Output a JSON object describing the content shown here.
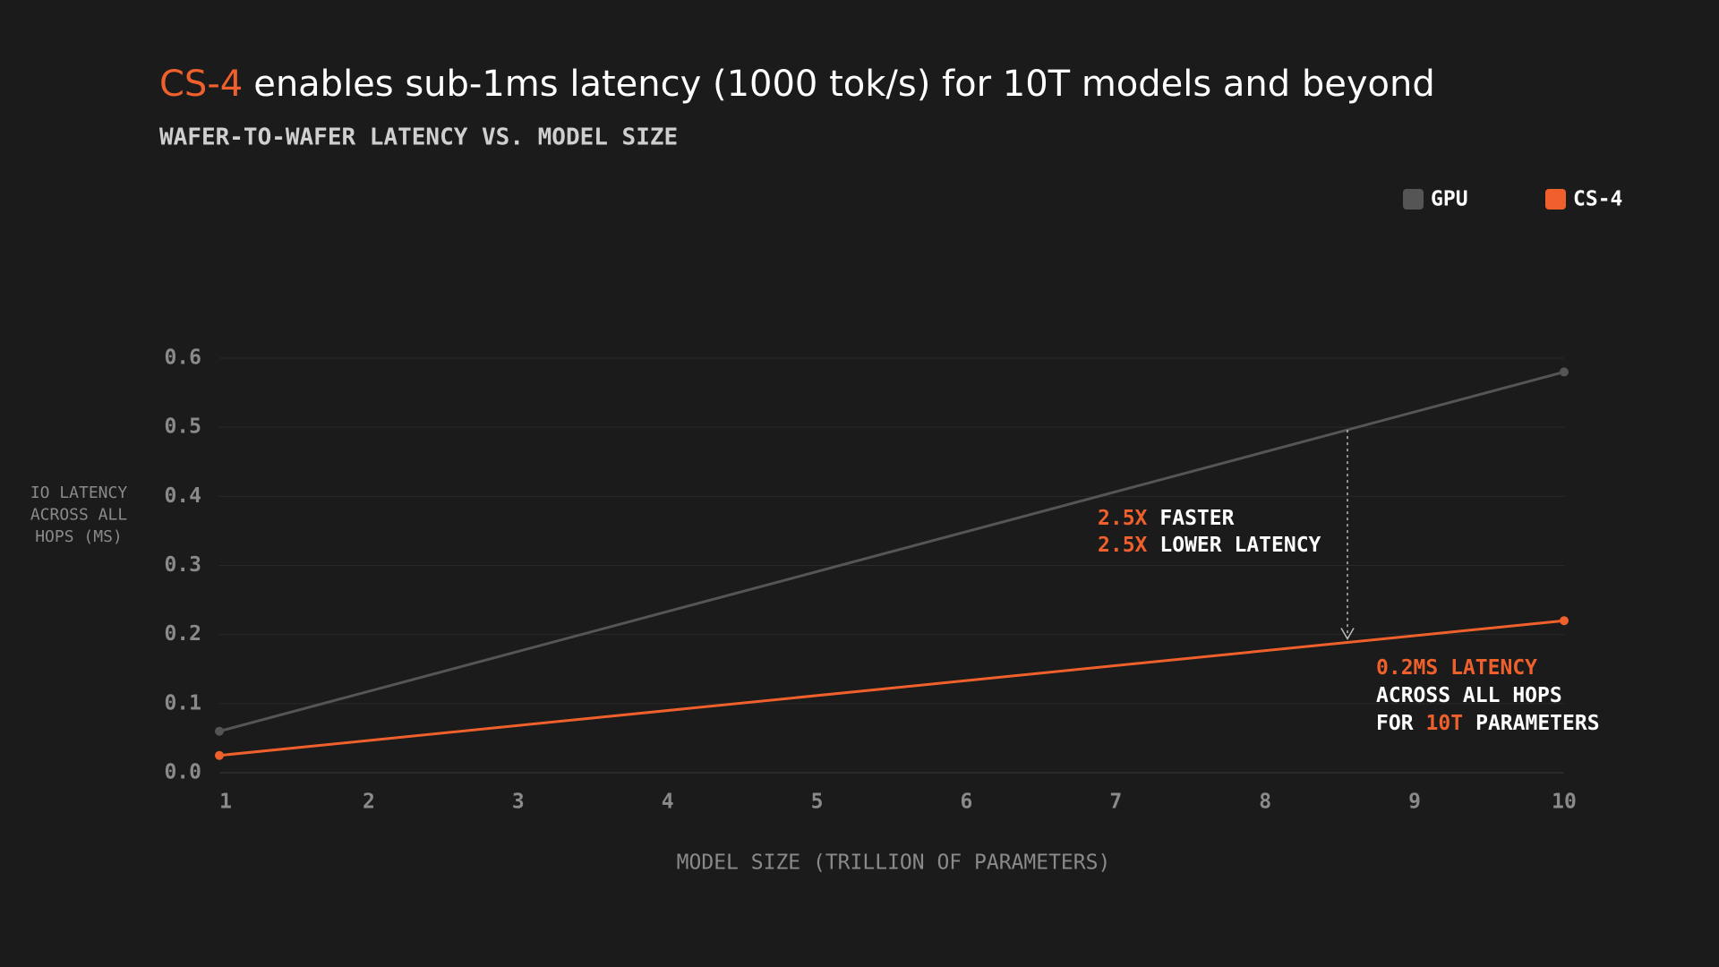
{
  "chart_data": {
    "type": "line",
    "title_parts": [
      {
        "text": "CS-4",
        "color": "#f0602c"
      },
      {
        "text": "enables sub-1ms latency (1000 tok/s) for 10T models and beyond",
        "color": "#ffffff"
      }
    ],
    "subtitle": "WAFER-TO-WAFER LATENCY VS. MODEL SIZE",
    "x_label": "MODEL SIZE (TRILLION OF PARAMETERS)",
    "y_label": [
      "IO LATENCY",
      "ACROSS ALL",
      "HOPS (MS)"
    ],
    "x": [
      1,
      10
    ],
    "series": [
      {
        "name": "GPU",
        "color": "#555555",
        "values": [
          0.06,
          0.58
        ]
      },
      {
        "name": "CS-4",
        "color": "#f0602c",
        "values": [
          0.025,
          0.22
        ]
      }
    ],
    "xlim": [
      1,
      10
    ],
    "xticks": [
      1,
      2,
      3,
      4,
      5,
      6,
      7,
      8,
      9,
      10
    ],
    "ylim": [
      0,
      0.6
    ],
    "yticks": [
      {
        "value": 0,
        "label": "0.0"
      },
      0.1,
      0.2,
      0.3,
      0.4,
      0.5,
      0.6
    ],
    "grid": true,
    "legend": "top-right",
    "annotations": [
      {
        "arrow_x": 8.55,
        "lines": [
          [
            {
              "text": "2.5X",
              "color": "#f0602c"
            },
            {
              "text": "FASTER",
              "color": "#ffffff"
            }
          ],
          [
            {
              "text": "2.5X",
              "color": "#f0602c"
            },
            {
              "text": "LOWER LATENCY",
              "color": "#ffffff"
            }
          ]
        ]
      },
      {
        "lines": [
          [
            {
              "text": "0.2MS LATENCY",
              "color": "#f0602c"
            }
          ],
          [
            {
              "text": "ACROSS ALL HOPS",
              "color": "#ffffff"
            }
          ],
          [
            {
              "text": "FOR",
              "color": "#ffffff"
            },
            {
              "text": "10T",
              "color": "#f0602c"
            },
            {
              "text": "PARAMETERS",
              "color": "#ffffff"
            }
          ]
        ]
      }
    ]
  }
}
